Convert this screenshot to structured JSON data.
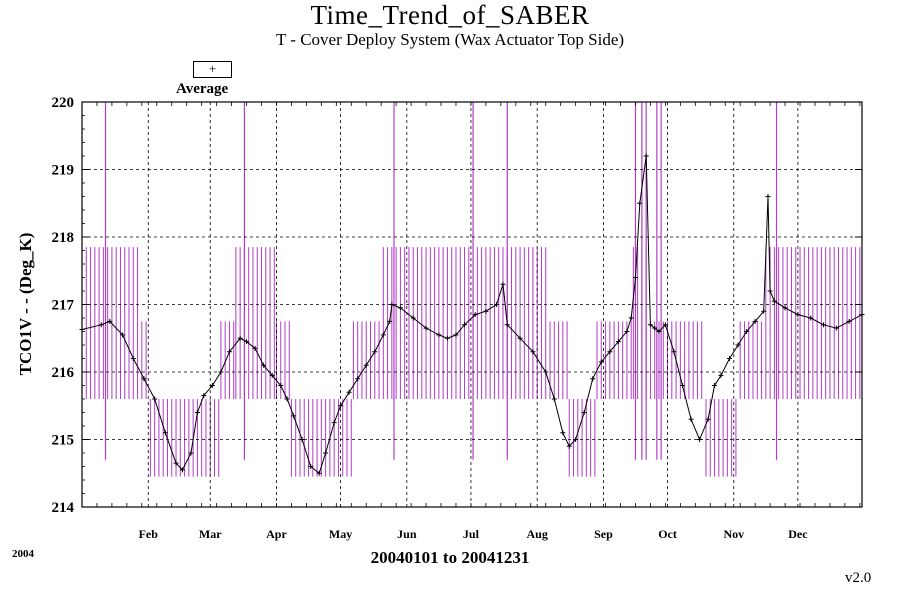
{
  "chart_data": {
    "type": "line",
    "title": "Time_Trend_of_SABER",
    "subtitle": "T - Cover Deploy System (Wax Actuator Top Side)",
    "ylabel": "TCO1V  - - (Deg_K)",
    "xlabel": "20040101 to 20041231",
    "year_label": "2004",
    "version": "v2.0",
    "legend": [
      {
        "symbol": "+",
        "label": "Average"
      }
    ],
    "ylim": [
      214,
      220
    ],
    "yticks": [
      214,
      215,
      216,
      217,
      218,
      219,
      220
    ],
    "month_ticks": [
      "Feb",
      "Mar",
      "Apr",
      "May",
      "Jun",
      "Jul",
      "Aug",
      "Sep",
      "Oct",
      "Nov",
      "Dec"
    ],
    "grid": true,
    "colors": {
      "average": "#000000",
      "range_bars": "#b03cc8",
      "grid": "#000000"
    },
    "average_series": {
      "name": "Average",
      "x_day_of_year": [
        1,
        10,
        14,
        20,
        25,
        30,
        35,
        40,
        45,
        48,
        52,
        55,
        58,
        62,
        66,
        70,
        75,
        78,
        82,
        86,
        90,
        94,
        97,
        100,
        104,
        108,
        112,
        115,
        119,
        122,
        126,
        130,
        134,
        138,
        142,
        145,
        146,
        150,
        156,
        162,
        168,
        172,
        176,
        180,
        185,
        190,
        195,
        198,
        200,
        206,
        212,
        218,
        222,
        226,
        229,
        232,
        236,
        240,
        244,
        248,
        252,
        256,
        258,
        260,
        262,
        265,
        267,
        269,
        271,
        274,
        278,
        282,
        286,
        290,
        294,
        297,
        300,
        304,
        308,
        312,
        316,
        320,
        322,
        323,
        325,
        330,
        336,
        342,
        348,
        354,
        360,
        366
      ],
      "y": [
        216.63,
        216.7,
        216.75,
        216.55,
        216.2,
        215.9,
        215.6,
        215.1,
        214.65,
        214.55,
        214.8,
        215.4,
        215.65,
        215.8,
        216.0,
        216.3,
        216.5,
        216.45,
        216.35,
        216.1,
        215.95,
        215.8,
        215.6,
        215.35,
        215.0,
        214.6,
        214.5,
        214.8,
        215.25,
        215.5,
        215.7,
        215.9,
        216.1,
        216.3,
        216.55,
        216.75,
        217.0,
        216.95,
        216.8,
        216.65,
        216.55,
        216.5,
        216.55,
        216.7,
        216.85,
        216.9,
        217.0,
        217.3,
        216.7,
        216.5,
        216.3,
        216.0,
        215.6,
        215.1,
        214.9,
        215.0,
        215.4,
        215.9,
        216.15,
        216.3,
        216.45,
        216.6,
        216.8,
        217.4,
        218.5,
        219.2,
        216.7,
        216.65,
        216.6,
        216.7,
        216.3,
        215.8,
        215.3,
        215.0,
        215.3,
        215.8,
        215.95,
        216.2,
        216.4,
        216.6,
        216.75,
        216.9,
        218.6,
        217.2,
        217.05,
        216.95,
        216.85,
        216.8,
        216.7,
        216.65,
        216.75,
        216.85
      ]
    },
    "spikes_day_of_year": [
      12,
      77,
      147,
      184,
      200,
      260,
      263,
      265,
      270,
      272,
      326
    ],
    "range_bands": [
      {
        "from": 1,
        "to": 28,
        "min": 215.6,
        "max": 217.85
      },
      {
        "from": 29,
        "to": 32,
        "min": 215.6,
        "max": 216.75
      },
      {
        "from": 33,
        "to": 65,
        "min": 214.45,
        "max": 215.6
      },
      {
        "from": 66,
        "to": 72,
        "min": 215.6,
        "max": 216.75
      },
      {
        "from": 73,
        "to": 91,
        "min": 215.6,
        "max": 217.85
      },
      {
        "from": 92,
        "to": 98,
        "min": 215.6,
        "max": 216.75
      },
      {
        "from": 99,
        "to": 127,
        "min": 214.45,
        "max": 215.6
      },
      {
        "from": 128,
        "to": 141,
        "min": 215.6,
        "max": 216.75
      },
      {
        "from": 142,
        "to": 219,
        "min": 215.6,
        "max": 217.85
      },
      {
        "from": 220,
        "to": 228,
        "min": 215.6,
        "max": 216.75
      },
      {
        "from": 229,
        "to": 241,
        "min": 214.45,
        "max": 215.6
      },
      {
        "from": 242,
        "to": 258,
        "min": 215.6,
        "max": 216.75
      },
      {
        "from": 259,
        "to": 266,
        "min": 215.6,
        "max": 217.85
      },
      {
        "from": 267,
        "to": 292,
        "min": 215.6,
        "max": 216.75
      },
      {
        "from": 293,
        "to": 308,
        "min": 214.45,
        "max": 215.6
      },
      {
        "from": 309,
        "to": 320,
        "min": 215.6,
        "max": 216.75
      },
      {
        "from": 321,
        "to": 366,
        "min": 215.6,
        "max": 217.85
      }
    ]
  }
}
